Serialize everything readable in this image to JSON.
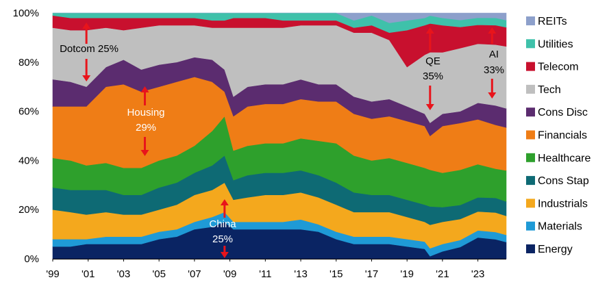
{
  "chart_data": {
    "type": "area",
    "title": "",
    "xlabel": "",
    "ylabel": "",
    "ylim": [
      0,
      100
    ],
    "xlim": [
      1999,
      2024.6
    ],
    "y_ticks": [
      "0%",
      "20%",
      "40%",
      "60%",
      "80%",
      "100%"
    ],
    "x_ticks": [
      "'99",
      "'01",
      "'03",
      "'05",
      "'07",
      "'09",
      "'11",
      "'13",
      "'15",
      "'17",
      "'19",
      "'21",
      "'23"
    ],
    "legend_position": "right",
    "x": [
      1999,
      2000,
      2000.9,
      2002,
      2003,
      2004,
      2005,
      2006,
      2007,
      2008,
      2008.7,
      2009.2,
      2010,
      2011,
      2012,
      2013,
      2014,
      2015,
      2016,
      2017,
      2018,
      2019,
      2020,
      2020.3,
      2021,
      2022,
      2023,
      2024,
      2024.6
    ],
    "series": [
      {
        "name": "Energy",
        "color": "#0a2463",
        "values": [
          5,
          5,
          6,
          6,
          6,
          6,
          8,
          9,
          12,
          13,
          15,
          12,
          12,
          12,
          12,
          12,
          11,
          8,
          6,
          6,
          6,
          5,
          4,
          1,
          3,
          5,
          9,
          8,
          7
        ]
      },
      {
        "name": "Materials",
        "color": "#1f9ad6",
        "values": [
          3,
          3,
          2,
          3,
          3,
          3,
          3,
          3,
          3,
          4,
          4,
          3,
          3,
          3,
          3,
          4,
          3,
          3,
          3,
          3,
          3,
          3,
          3,
          3,
          3,
          3,
          3,
          3,
          3
        ]
      },
      {
        "name": "Industrials",
        "color": "#f4a81d",
        "values": [
          12,
          11,
          10,
          10,
          9,
          9,
          9,
          10,
          11,
          11,
          12,
          9,
          10,
          11,
          11,
          11,
          11,
          11,
          10,
          10,
          10,
          9,
          8,
          9,
          9,
          9,
          8,
          8,
          8
        ]
      },
      {
        "name": "Cons Stap",
        "color": "#0e6a74",
        "values": [
          9,
          9,
          10,
          9,
          8,
          8,
          9,
          9,
          9,
          10,
          11,
          8,
          9,
          9,
          9,
          9,
          9,
          9,
          8,
          7,
          7,
          7,
          7,
          7,
          6,
          6,
          6,
          6,
          6
        ]
      },
      {
        "name": "Healthcare",
        "color": "#2ea02c",
        "values": [
          12,
          12,
          10,
          11,
          11,
          11,
          11,
          11,
          11,
          14,
          16,
          12,
          12,
          12,
          12,
          13,
          14,
          16,
          15,
          14,
          15,
          15,
          15,
          14,
          14,
          15,
          14,
          12,
          13
        ]
      },
      {
        "name": "Financials",
        "color": "#ef7d16",
        "values": [
          21,
          22,
          24,
          31,
          34,
          31,
          30,
          30,
          28,
          20,
          10,
          14,
          16,
          16,
          16,
          16,
          16,
          17,
          17,
          17,
          17,
          17,
          17,
          13,
          19,
          20,
          19,
          18,
          18
        ]
      },
      {
        "name": "Cons Disc",
        "color": "#5b2c6f",
        "values": [
          11,
          10,
          8,
          8,
          10,
          9,
          9,
          8,
          8,
          9,
          9,
          8,
          8,
          8,
          8,
          8,
          7,
          7,
          7,
          7,
          7,
          6,
          5,
          5,
          5,
          5,
          7,
          8,
          8
        ]
      },
      {
        "name": "Tech",
        "color": "#bfbfbf",
        "values": [
          21,
          21,
          23,
          16,
          12,
          17,
          16,
          15,
          13,
          13,
          17,
          28,
          24,
          23,
          23,
          22,
          24,
          24,
          26,
          28,
          24,
          16,
          24,
          27,
          25,
          27,
          25,
          25,
          26
        ]
      },
      {
        "name": "Telecom",
        "color": "#c8102e",
        "values": [
          5,
          5,
          5,
          4,
          5,
          4,
          3,
          3,
          3,
          3,
          3,
          4,
          4,
          4,
          3,
          2,
          2,
          2,
          2,
          3,
          3,
          15,
          12,
          11,
          11,
          9,
          8,
          8,
          8
        ]
      },
      {
        "name": "Utilities",
        "color": "#3fc1aa",
        "values": [
          1,
          2,
          2,
          2,
          2,
          2,
          2,
          2,
          2,
          3,
          3,
          2,
          2,
          2,
          3,
          3,
          3,
          3,
          3,
          4,
          4,
          4,
          3,
          3,
          3,
          3,
          3,
          3,
          3
        ]
      },
      {
        "name": "REITs",
        "color": "#8da0cb",
        "values": [
          0,
          0,
          0,
          0,
          0,
          0,
          0,
          0,
          0,
          0,
          0,
          0,
          0,
          0,
          0,
          0,
          0,
          0,
          3,
          1,
          4,
          3,
          2,
          1,
          2,
          3,
          2,
          2,
          3
        ]
      }
    ],
    "annotations": [
      {
        "id": "dotcom",
        "lines": [
          "Dotcom 25%"
        ],
        "color": "#000000",
        "x": 2000.9,
        "y_top": 96,
        "y_bottom": 71
      },
      {
        "id": "housing",
        "lines": [
          "Housing",
          "29%"
        ],
        "color": "#ffffff",
        "x": 2004.2,
        "y_top": 70.5,
        "y_bottom": 41.5
      },
      {
        "id": "china",
        "lines": [
          "China",
          "25%"
        ],
        "color": "#ffffff",
        "x": 2008.7,
        "y_top": 25,
        "y_bottom": 0
      },
      {
        "id": "qe",
        "lines": [
          "QE",
          "35%"
        ],
        "color": "#000000",
        "x": 2020.3,
        "y_top": 93,
        "y_bottom": 59
      },
      {
        "id": "ai",
        "lines": [
          "AI",
          "33%"
        ],
        "color": "#000000",
        "x": 2023.8,
        "y_top": 96,
        "y_bottom": 63
      }
    ]
  },
  "colors": {
    "arrow": "#e8141b"
  }
}
